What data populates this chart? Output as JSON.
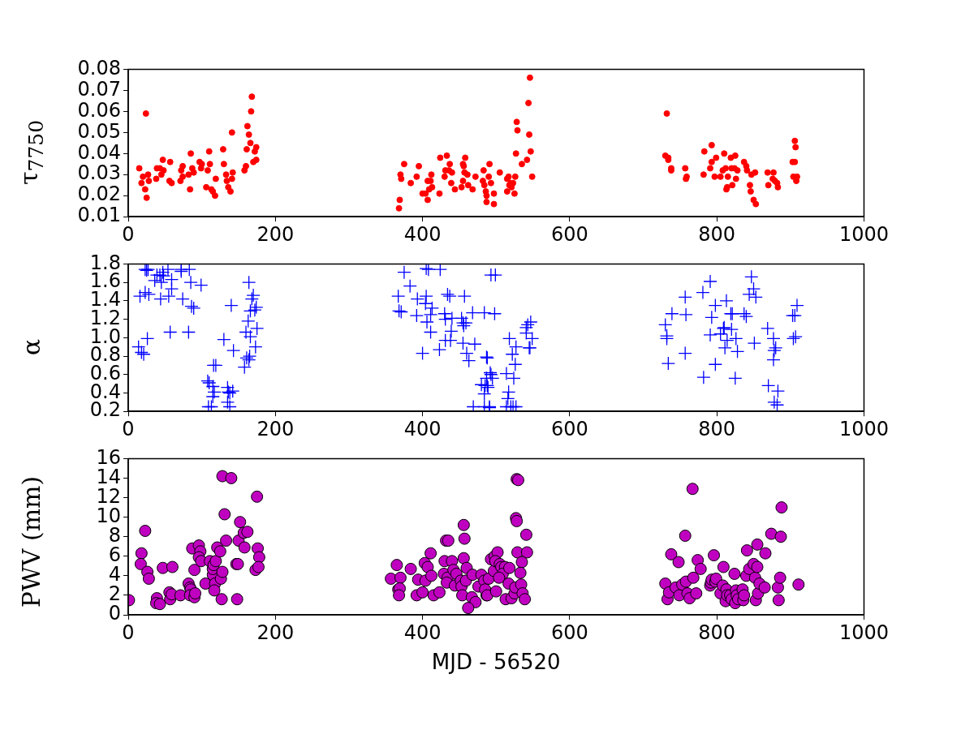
{
  "chart_data": [
    {
      "type": "scatter",
      "ylabel": "τ$_{7750}$",
      "color": "#ff0000",
      "marker": "circle",
      "xlim": [
        0,
        1000
      ],
      "xticks": [
        0,
        200,
        400,
        600,
        800,
        1000
      ],
      "ylim": [
        0.01,
        0.08
      ],
      "yticks": [
        0.01,
        0.02,
        0.03,
        0.04,
        0.05,
        0.06,
        0.07,
        0.08
      ],
      "x": [
        15,
        18,
        20,
        23,
        24,
        25,
        27,
        28,
        38,
        39,
        43,
        45,
        47,
        48,
        56,
        57,
        59,
        71,
        72,
        74,
        74,
        82,
        84,
        85,
        87,
        89,
        97,
        99,
        100,
        108,
        110,
        111,
        106,
        113,
        115,
        118,
        119,
        129,
        130,
        133,
        134,
        136,
        139,
        141,
        142,
        141,
        158,
        160,
        161,
        162,
        164,
        166,
        167,
        168,
        170,
        172,
        174,
        174,
        368,
        369,
        370,
        371,
        375,
        384,
        392,
        395,
        400,
        404,
        407,
        407,
        409,
        411,
        412,
        413,
        423,
        424,
        430,
        431,
        433,
        437,
        436,
        439,
        440,
        444,
        453,
        455,
        455,
        456,
        458,
        457,
        461,
        462,
        468,
        472,
        483,
        482,
        484,
        486,
        487,
        487,
        491,
        490,
        493,
        497,
        497,
        505,
        515,
        515,
        517,
        518,
        520,
        521,
        523,
        525,
        526,
        527,
        528,
        529,
        535,
        542,
        544,
        545,
        546,
        547,
        549,
        732,
        730,
        734,
        734,
        738,
        738,
        757,
        758,
        759,
        782,
        783,
        791,
        793,
        793,
        797,
        799,
        805,
        808,
        810,
        812,
        813,
        814,
        815,
        819,
        820,
        821,
        824,
        825,
        826,
        828,
        837,
        840,
        841,
        845,
        846,
        847,
        850,
        852,
        853,
        869,
        870,
        877,
        876,
        879,
        882,
        883,
        903,
        906,
        906,
        907,
        904,
        908,
        909
      ],
      "values": [
        0.033,
        0.026,
        0.029,
        0.023,
        0.059,
        0.019,
        0.03,
        0.027,
        0.028,
        0.033,
        0.033,
        0.03,
        0.037,
        0.032,
        0.027,
        0.036,
        0.026,
        0.027,
        0.032,
        0.034,
        0.029,
        0.03,
        0.023,
        0.04,
        0.033,
        0.031,
        0.036,
        0.033,
        0.035,
        0.032,
        0.041,
        0.035,
        0.024,
        0.023,
        0.022,
        0.02,
        0.028,
        0.042,
        0.035,
        0.03,
        0.027,
        0.024,
        0.022,
        0.028,
        0.031,
        0.05,
        0.032,
        0.034,
        0.042,
        0.053,
        0.049,
        0.045,
        0.06,
        0.067,
        0.036,
        0.041,
        0.043,
        0.037,
        0.014,
        0.018,
        0.03,
        0.028,
        0.035,
        0.026,
        0.029,
        0.034,
        0.021,
        0.021,
        0.018,
        0.027,
        0.023,
        0.027,
        0.03,
        0.024,
        0.021,
        0.038,
        0.029,
        0.032,
        0.039,
        0.035,
        0.032,
        0.026,
        0.031,
        0.023,
        0.024,
        0.027,
        0.035,
        0.034,
        0.038,
        0.031,
        0.03,
        0.025,
        0.023,
        0.029,
        0.032,
        0.027,
        0.025,
        0.022,
        0.02,
        0.017,
        0.035,
        0.029,
        0.026,
        0.021,
        0.016,
        0.031,
        0.028,
        0.022,
        0.029,
        0.025,
        0.026,
        0.024,
        0.026,
        0.021,
        0.029,
        0.04,
        0.055,
        0.051,
        0.035,
        0.037,
        0.064,
        0.049,
        0.076,
        0.041,
        0.029,
        0.059,
        0.039,
        0.038,
        0.037,
        0.033,
        0.032,
        0.033,
        0.028,
        0.029,
        0.03,
        0.041,
        0.033,
        0.036,
        0.044,
        0.029,
        0.038,
        0.029,
        0.032,
        0.04,
        0.033,
        0.023,
        0.024,
        0.029,
        0.038,
        0.033,
        0.025,
        0.033,
        0.039,
        0.028,
        0.032,
        0.036,
        0.034,
        0.032,
        0.025,
        0.022,
        0.03,
        0.018,
        0.031,
        0.016,
        0.031,
        0.025,
        0.031,
        0.028,
        0.027,
        0.026,
        0.024,
        0.036,
        0.036,
        0.046,
        0.043,
        0.029,
        0.027,
        0.029
      ]
    },
    {
      "type": "scatter",
      "ylabel": "α",
      "color": "#0000ff",
      "marker": "cross",
      "xlim": [
        0,
        1000
      ],
      "xticks": [
        0,
        200,
        400,
        600,
        800,
        1000
      ],
      "ylim": [
        0.2,
        1.8
      ],
      "yticks": [
        0.2,
        0.4,
        0.6,
        0.8,
        {
          "value": 1,
          "label": "1.0"
        },
        1.2,
        1.4,
        1.6,
        1.8
      ],
      "x": [
        23,
        25,
        27,
        39,
        36,
        43,
        47,
        45,
        48,
        54,
        59,
        59,
        72,
        72,
        83,
        85,
        99,
        16,
        23,
        28,
        44,
        55,
        74,
        86,
        89,
        14,
        18,
        21,
        26,
        57,
        82,
        108,
        110,
        116,
        119,
        115,
        115,
        117,
        109,
        113,
        130,
        135,
        136,
        138,
        142,
        135,
        138,
        140,
        143,
        158,
        161,
        164,
        165,
        163,
        160,
        166,
        164,
        170,
        168,
        166,
        172,
        174,
        175,
        173,
        367,
        368,
        371,
        375,
        383,
        393,
        392,
        400,
        405,
        408,
        424,
        405,
        404,
        413,
        411,
        406,
        411,
        423,
        430,
        431,
        434,
        437,
        440,
        439,
        431,
        438,
        453,
        455,
        456,
        459,
        457,
        468,
        455,
        471,
        460,
        463,
        484,
        487,
        469,
        484,
        484,
        480,
        485,
        487,
        491,
        493,
        488,
        499,
        498,
        492,
        493,
        495,
        488,
        489,
        491,
        514,
        517,
        516,
        514,
        520,
        523,
        527,
        524,
        526,
        522,
        518,
        527,
        541,
        541,
        543,
        545,
        547,
        549,
        546,
        730,
        732,
        732,
        739,
        734,
        757,
        757,
        758,
        781,
        782,
        791,
        793,
        798,
        798,
        791,
        805,
        809,
        810,
        813,
        814,
        811,
        819,
        821,
        820,
        826,
        825,
        828,
        837,
        840,
        844,
        847,
        850,
        853,
        851,
        869,
        870,
        877,
        880,
        878,
        877,
        883,
        878,
        882,
        903,
        906,
        904,
        907,
        909
      ],
      "values": [
        1.74,
        1.73,
        1.74,
        1.68,
        1.62,
        1.68,
        1.71,
        1.6,
        1.67,
        1.74,
        1.63,
        1.53,
        1.74,
        1.72,
        1.74,
        1.6,
        1.57,
        1.45,
        1.49,
        1.47,
        1.42,
        1.45,
        1.42,
        1.34,
        1.32,
        0.9,
        0.84,
        0.82,
        0.99,
        1.06,
        1.06,
        0.53,
        0.51,
        0.7,
        0.7,
        0.47,
        0.36,
        0.41,
        0.25,
        0.25,
        0.98,
        0.46,
        0.41,
        0.4,
        0.42,
        0.3,
        0.25,
        1.35,
        0.86,
        0.68,
        0.78,
        0.76,
        0.8,
        1.18,
        1.06,
        1.01,
        1.6,
        1.46,
        1.42,
        1.29,
        1.3,
        1.33,
        1.1,
        0.9,
        1.45,
        1.29,
        1.28,
        1.71,
        1.56,
        1.42,
        1.24,
        0.83,
        1.75,
        1.74,
        1.74,
        1.45,
        1.37,
        1.32,
        1.25,
        1.17,
        1.06,
        0.87,
        1.26,
        1.2,
        1.47,
        1.45,
        1.21,
        1.07,
        0.97,
        0.97,
        1.21,
        1.16,
        1.13,
        1.16,
        1.45,
        1.27,
        0.94,
        0.93,
        0.83,
        0.75,
        1.27,
        0.79,
        0.25,
        0.25,
        0.39,
        0.49,
        0.48,
        0.56,
        0.25,
        1.68,
        0.78,
        1.68,
        1.26,
        0.62,
        0.6,
        0.56,
        0.48,
        0.46,
        0.24,
        0.61,
        0.41,
        0.34,
        0.25,
        0.25,
        0.25,
        0.25,
        0.56,
        0.71,
        0.82,
        0.99,
        0.9,
        1.05,
        1.11,
        1.14,
        0.89,
        1.17,
        0.99,
        0.89,
        1.14,
        1.02,
        0.99,
        1.26,
        0.72,
        0.83,
        1.44,
        1.25,
        1.49,
        0.57,
        1.61,
        1.22,
        1.35,
        0.71,
        1.03,
        1.04,
        1.1,
        1.11,
        1.4,
        0.97,
        0.89,
        1.26,
        1.26,
        1.09,
        0.99,
        0.56,
        0.85,
        1.26,
        1.23,
        1.47,
        1.66,
        1.53,
        1.44,
        0.94,
        1.1,
        0.48,
        0.99,
        0.89,
        0.86,
        0.76,
        0.42,
        0.3,
        0.27,
        1.24,
        1.24,
        0.99,
        1.01,
        1.35
      ]
    },
    {
      "type": "scatter",
      "ylabel": "PWV (mm)",
      "xlabel": "MJD - 56520",
      "color": "#c000c0",
      "marker": "circle",
      "xlim": [
        0,
        1000
      ],
      "xticks": [
        0,
        200,
        400,
        600,
        800,
        1000
      ],
      "ylim": [
        0,
        16
      ],
      "yticks": [
        0,
        2,
        4,
        6,
        8,
        10,
        12,
        14,
        16
      ],
      "x": [
        1,
        18,
        17,
        23,
        26,
        28,
        39,
        38,
        43,
        47,
        56,
        57,
        59,
        60,
        71,
        82,
        84,
        85,
        84,
        90,
        91,
        87,
        90,
        96,
        98,
        96,
        99,
        105,
        111,
        115,
        115,
        116,
        119,
        118,
        117,
        121,
        125,
        127,
        126,
        128,
        128,
        131,
        133,
        140,
        148,
        147,
        149,
        150,
        152,
        158,
        157,
        162,
        175,
        176,
        178,
        173,
        177,
        357,
        365,
        370,
        367,
        369,
        368,
        384,
        392,
        394,
        400,
        403,
        404,
        407,
        411,
        412,
        415,
        423,
        432,
        435,
        430,
        440,
        429,
        434,
        433,
        442,
        444,
        446,
        452,
        453,
        454,
        456,
        457,
        456,
        460,
        459,
        467,
        468,
        472,
        462,
        476,
        480,
        484,
        487,
        485,
        493,
        488,
        490,
        497,
        498,
        502,
        499,
        500,
        505,
        507,
        512,
        509,
        518,
        504,
        513,
        517,
        521,
        525,
        526,
        527,
        528,
        528,
        530,
        541,
        529,
        542,
        535,
        533,
        534,
        536,
        539,
        730,
        733,
        735,
        738,
        744,
        748,
        749,
        753,
        757,
        758,
        760,
        763,
        767,
        768,
        772,
        774,
        778,
        791,
        792,
        793,
        796,
        798,
        799,
        805,
        808,
        809,
        812,
        813,
        814,
        818,
        820,
        824,
        825,
        826,
        827,
        829,
        835,
        836,
        837,
        840,
        841,
        844,
        850,
        852,
        853,
        855,
        855,
        856,
        858,
        865,
        866,
        874,
        883,
        884,
        886,
        887,
        888,
        911
      ],
      "values": [
        1.5,
        6.3,
        5.2,
        8.6,
        4.4,
        3.7,
        1.7,
        1.2,
        1.1,
        4.8,
        2.3,
        1.6,
        2.1,
        4.9,
        2,
        3.2,
        2.8,
        2.6,
        2,
        1.8,
        2.2,
        6.8,
        4.6,
        7.1,
        6.5,
        5.9,
        5.5,
        3.2,
        5.5,
        4.1,
        4.7,
        5.1,
        5.5,
        3.2,
        2.5,
        6.9,
        6.5,
        1.6,
        3.7,
        4.4,
        14.2,
        10.3,
        7.6,
        14,
        1.6,
        5.2,
        5.2,
        7.6,
        9.5,
        6.9,
        8.4,
        8.5,
        12.1,
        6.8,
        5.9,
        4.6,
        4.9,
        3.7,
        5.1,
        3.8,
        2.6,
        2.7,
        2,
        4.7,
        2,
        3.6,
        2.3,
        5.3,
        3.5,
        4.9,
        6.3,
        4,
        2,
        2.3,
        7.6,
        7.6,
        5.5,
        5.5,
        4.2,
        3.8,
        3.3,
        4.6,
        3,
        4.2,
        3.5,
        2.9,
        2,
        9.2,
        7.8,
        5.8,
        4.8,
        3.5,
        1.8,
        4.1,
        1.3,
        0.7,
        2.9,
        4.1,
        3.5,
        2,
        2.6,
        5.7,
        2,
        3.7,
        4.5,
        6,
        6.4,
        5.5,
        2.4,
        5.2,
        4.9,
        4.9,
        4.2,
        4.8,
        3.8,
        1.6,
        3.2,
        1.7,
        2.2,
        2.8,
        9.9,
        9.6,
        13.9,
        13.8,
        8.2,
        6.4,
        6.4,
        5.4,
        4.3,
        3.1,
        2.2,
        1.6,
        3.2,
        1.6,
        2.3,
        6.2,
        2.8,
        5.4,
        2,
        3.1,
        8.1,
        3.4,
        2.2,
        1.7,
        12.9,
        3.8,
        2.2,
        5.6,
        4.7,
        3,
        3.3,
        3.6,
        6.1,
        3.4,
        3.7,
        2.2,
        3,
        4.9,
        1.4,
        2.6,
        2,
        2,
        1.6,
        4.2,
        1.2,
        2.5,
        2,
        1.6,
        2.6,
        1.5,
        2,
        4,
        6.6,
        4.7,
        5.2,
        3.8,
        1.5,
        7.2,
        4.9,
        2.2,
        3.2,
        2.8,
        6.3,
        8.3,
        2.8,
        1.5,
        3.8,
        8,
        11,
        3.1
      ]
    }
  ]
}
